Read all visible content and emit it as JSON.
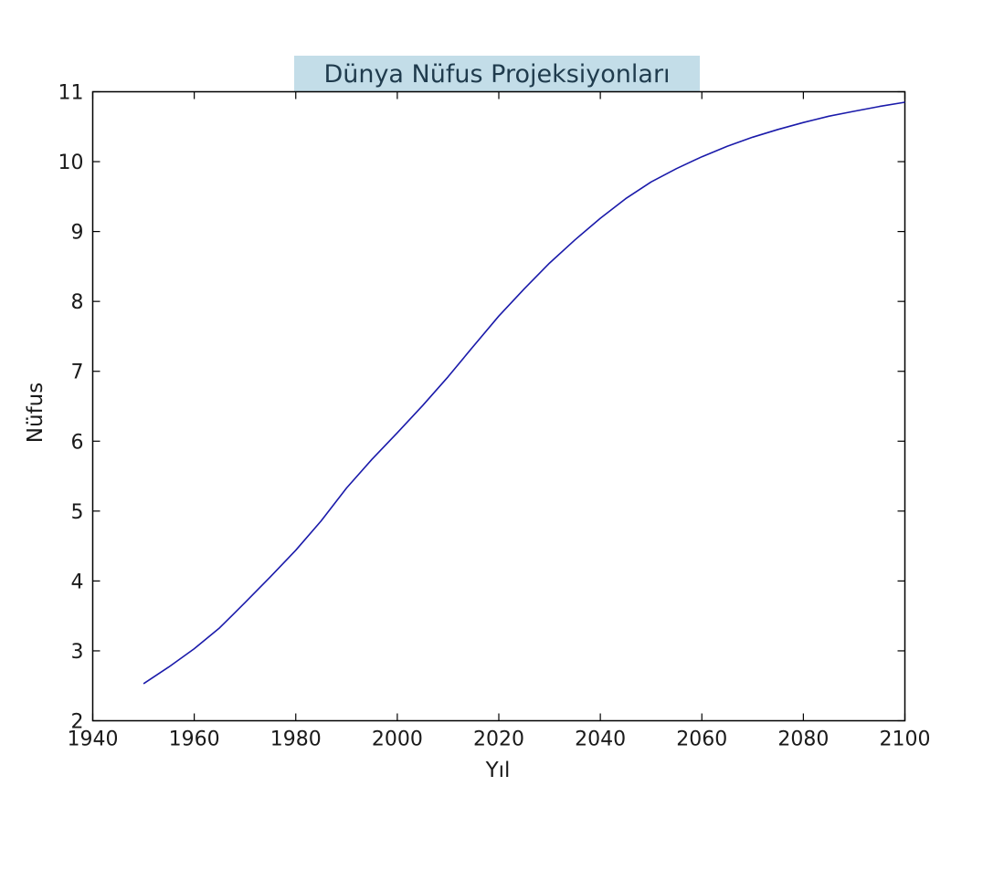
{
  "chart_data": {
    "type": "line",
    "title": "Dünya Nüfus Projeksiyonları",
    "xlabel": "Yıl",
    "ylabel": "Nüfus",
    "xlim": [
      1940,
      2100
    ],
    "ylim": [
      2,
      11
    ],
    "xticks": [
      1940,
      1960,
      1980,
      2000,
      2020,
      2040,
      2060,
      2080,
      2100
    ],
    "yticks": [
      2,
      3,
      4,
      5,
      6,
      7,
      8,
      9,
      10,
      11
    ],
    "grid": false,
    "series": [
      {
        "color": "#1a1aaa",
        "x": [
          1950,
          1955,
          1960,
          1965,
          1970,
          1975,
          1980,
          1985,
          1990,
          1995,
          2000,
          2005,
          2010,
          2015,
          2020,
          2025,
          2030,
          2035,
          2040,
          2045,
          2050,
          2055,
          2060,
          2065,
          2070,
          2075,
          2080,
          2085,
          2090,
          2095,
          2100
        ],
        "y": [
          2.53,
          2.77,
          3.03,
          3.33,
          3.69,
          4.06,
          4.44,
          4.86,
          5.33,
          5.74,
          6.12,
          6.51,
          6.92,
          7.36,
          7.79,
          8.18,
          8.55,
          8.88,
          9.19,
          9.47,
          9.71,
          9.9,
          10.07,
          10.22,
          10.35,
          10.46,
          10.56,
          10.65,
          10.72,
          10.79,
          10.85
        ]
      }
    ],
    "title_background": "#c3dde8",
    "title_color": "#1f3b4d"
  }
}
